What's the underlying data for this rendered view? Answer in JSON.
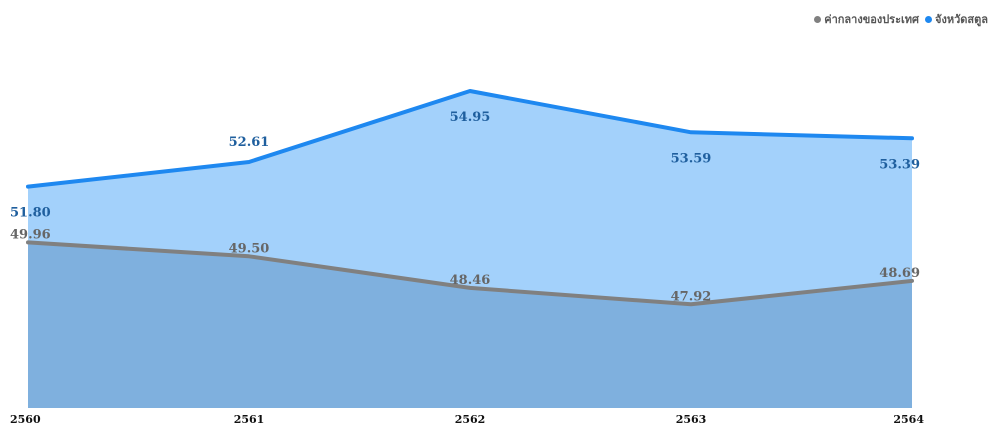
{
  "chart_data": {
    "type": "area",
    "title": "",
    "categories": [
      "2560",
      "2561",
      "2562",
      "2563",
      "2564"
    ],
    "ylim": [
      44.5,
      56.5
    ],
    "series": [
      {
        "name": "ค่ากลางของประเทศ",
        "values": [
          49.96,
          49.5,
          48.46,
          47.92,
          48.69
        ],
        "value_labels": [
          "49.96",
          "49.50",
          "48.46",
          "47.92",
          "48.69"
        ],
        "line_color": "#808080",
        "fill_color": "#7fb0de",
        "label_color": "#666666"
      },
      {
        "name": "จังหวัดสตูล",
        "values": [
          51.8,
          52.61,
          54.95,
          53.59,
          53.39
        ],
        "value_labels": [
          "51.80",
          "52.61",
          "54.95",
          "53.59",
          "53.39"
        ],
        "line_color": "#1e88f0",
        "fill_color": "#a3d1fb",
        "label_color": "#1f5f9e"
      }
    ],
    "legend_position": "top-right"
  }
}
